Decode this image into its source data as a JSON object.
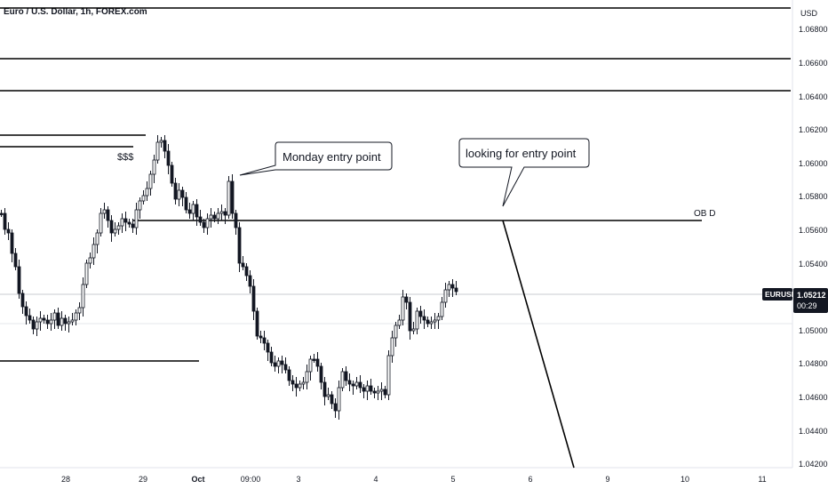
{
  "header": {
    "title": "Euro / U.S. Dollar, 1h, FOREX.com",
    "currency": "USD"
  },
  "price_badge": {
    "symbol": "EURUSD",
    "price": "1.05212",
    "countdown": "00:29"
  },
  "annotations": {
    "liquidity_label": "$$$",
    "monday_entry": "Monday entry point",
    "looking_entry": "looking for entry point",
    "ob_label": "OB D"
  },
  "colors": {
    "candle_up": "#ffffff",
    "candle_down": "#131722",
    "line": "#000000",
    "grid_line": "#d1d4dc",
    "badge_bg": "#131722"
  },
  "chart_data": {
    "type": "candlestick",
    "y_ticks": [
      "1.06800",
      "1.06600",
      "1.06400",
      "1.06200",
      "1.06000",
      "1.05800",
      "1.05600",
      "1.05400",
      "1.05200",
      "1.05000",
      "1.04800",
      "1.04600",
      "1.04400",
      "1.04200"
    ],
    "x_ticks": [
      "28",
      "29",
      "Oct",
      "09:00",
      "3",
      "4",
      "5",
      "6",
      "9",
      "10",
      "11"
    ],
    "ylim": [
      1.0415,
      1.0695
    ],
    "horizontal_levels": [
      1.0687,
      1.0658,
      1.0642,
      1.0564,
      1.0481,
      1.0616,
      1.0609
    ],
    "current_price": 1.05212,
    "grid": false
  }
}
